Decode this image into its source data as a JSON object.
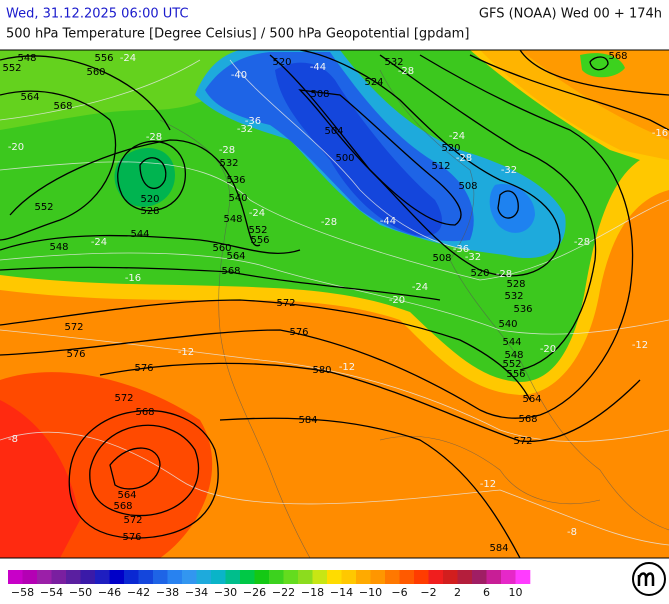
{
  "header": {
    "left": "Wed, 31.12.2025 06:00 UTC",
    "right": "GFS (NOAA) Wed 00 + 174h",
    "subtitle": "500 hPa Temperature [Degree Celsius] / 500 hPa Geopotential [gpdam]"
  },
  "contour_labels": {
    "geopotential": [
      "548",
      "552",
      "556",
      "560",
      "564",
      "568",
      "520",
      "532",
      "524",
      "568",
      "508",
      "504",
      "500",
      "520",
      "512",
      "508",
      "532",
      "536",
      "520",
      "528",
      "540",
      "548",
      "552",
      "556",
      "560",
      "564",
      "568",
      "552",
      "548",
      "544",
      "572",
      "576",
      "572",
      "576",
      "576",
      "580",
      "572",
      "568",
      "584",
      "508",
      "520",
      "528",
      "532",
      "536",
      "540",
      "544",
      "548",
      "552",
      "556",
      "564",
      "568",
      "572",
      "564",
      "568",
      "572",
      "576",
      "584"
    ],
    "temperature": [
      "-24",
      "-40",
      "-44",
      "-28",
      "-36",
      "-32",
      "-28",
      "-20",
      "-28",
      "-24",
      "-28",
      "-32",
      "-16",
      "-24",
      "-28",
      "-44",
      "-24",
      "-28",
      "-36",
      "-32",
      "-28",
      "-16",
      "-24",
      "-20",
      "-12",
      "-20",
      "-12",
      "-12",
      "-8",
      "-12",
      "-8"
    ]
  },
  "colorbar": {
    "labels": [
      "−58",
      "−54",
      "−50",
      "−46",
      "−42",
      "−38",
      "−34",
      "−30",
      "−26",
      "−22",
      "−18",
      "−14",
      "−10",
      "−6",
      "−2",
      "2",
      "6",
      "10"
    ]
  }
}
